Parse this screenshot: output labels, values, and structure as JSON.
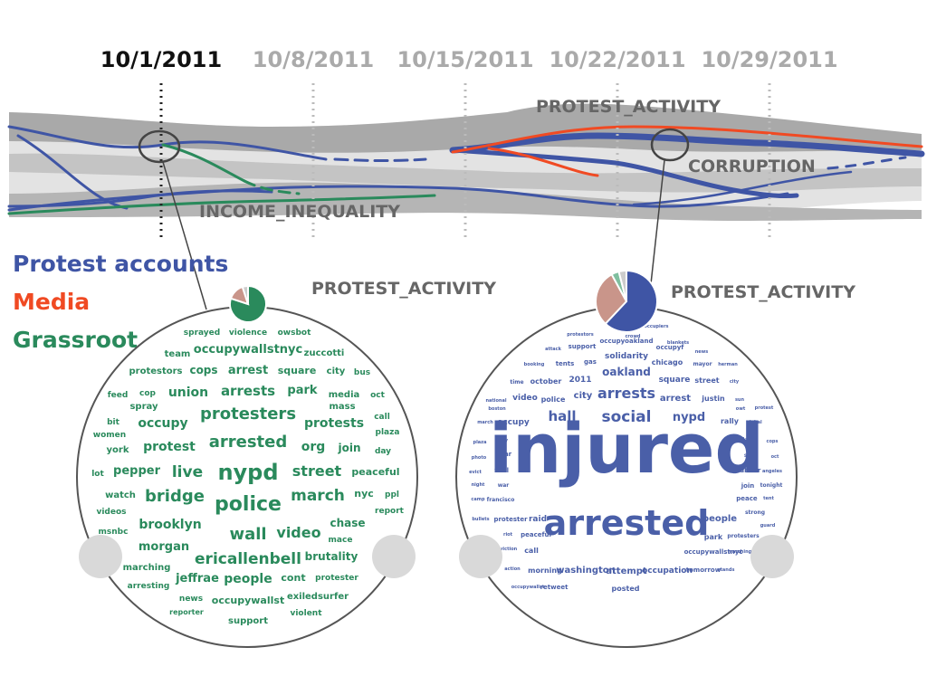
{
  "timeline": {
    "dates": [
      "10/1/2011",
      "10/8/2011",
      "10/15/2011",
      "10/22/2011",
      "10/29/2011"
    ],
    "active_date": "10/1/2011",
    "topics": [
      "PROTEST_ACTIVITY",
      "CORRUPTION",
      "INCOME_INEQUALITY"
    ]
  },
  "legend": [
    {
      "label": "Protest accounts",
      "color": "#3f55a5"
    },
    {
      "label": "Media",
      "color": "#f04a23"
    },
    {
      "label": "Grassroot",
      "color": "#2a8a5c"
    }
  ],
  "clouds": [
    {
      "title": "PROTEST_ACTIVITY",
      "color": "#2a8a5c",
      "pie": [
        {
          "value": 0.8,
          "color": "#2a8a5c"
        },
        {
          "value": 0.15,
          "color": "#c9958a"
        },
        {
          "value": 0.05,
          "color": "#cccccc"
        }
      ],
      "words": [
        "sprayed",
        "violence",
        "owsbot",
        "team",
        "occupywallstnyc",
        "zuccotti",
        "protestors",
        "cops",
        "arrest",
        "square",
        "city",
        "bus",
        "feed",
        "cop",
        "union",
        "arrests",
        "park",
        "media",
        "oct",
        "spray",
        "mass",
        "bit",
        "occupy",
        "protesters",
        "protests",
        "call",
        "women",
        "plaza",
        "york",
        "protest",
        "arrested",
        "org",
        "join",
        "day",
        "lot",
        "pepper",
        "live",
        "nypd",
        "street",
        "peaceful",
        "watch",
        "bridge",
        "nyc",
        "ppl",
        "videos",
        "police",
        "march",
        "report",
        "brooklyn",
        "wall",
        "video",
        "chase",
        "msnbc",
        "morgan",
        "ericallenbell",
        "brutality",
        "marching",
        "mace",
        "arresting",
        "jeffrae",
        "people",
        "cont",
        "protester",
        "news",
        "occupywallst",
        "exiledsurfer",
        "reporter",
        "support",
        "violent"
      ]
    },
    {
      "title": "PROTEST_ACTIVITY",
      "color": "#4a5fa8",
      "pie": [
        {
          "value": 0.62,
          "color": "#3f55a5"
        },
        {
          "value": 0.3,
          "color": "#c9958a"
        },
        {
          "value": 0.04,
          "color": "#7fbf9f"
        },
        {
          "value": 0.04,
          "color": "#cccccc"
        }
      ],
      "words": [
        "occupiers",
        "protestors",
        "crowd",
        "occupyoakland",
        "attack",
        "support",
        "blankets",
        "occupyf",
        "news",
        "booking",
        "tents",
        "gas",
        "chicago",
        "mayor",
        "herman",
        "solidarity",
        "oakland",
        "2011",
        "time",
        "october",
        "square",
        "street",
        "city",
        "national",
        "video",
        "city",
        "police",
        "arrests",
        "arrest",
        "justin",
        "sun",
        "owt",
        "boston",
        "protest",
        "march",
        "occupy",
        "hall",
        "social",
        "nypd",
        "rally",
        "global",
        "day",
        "plaza",
        "flash",
        "cops",
        "tear",
        "photo",
        "sign",
        "oct",
        "wall",
        "injured",
        "evict",
        "rubber",
        "war",
        "angeles",
        "night",
        "join",
        "tonight",
        "francisco",
        "camp",
        "peace",
        "tent",
        "bullets",
        "protester",
        "raid",
        "people",
        "strong",
        "peaceful",
        "arrested",
        "park",
        "protesters",
        "riot",
        "guard",
        "call",
        "eviction",
        "occupywallstnyc",
        "marching",
        "action",
        "morning",
        "washington",
        "attempt",
        "occupation",
        "tomorrow",
        "stands",
        "occupywallst",
        "retweet",
        "posted"
      ]
    }
  ]
}
